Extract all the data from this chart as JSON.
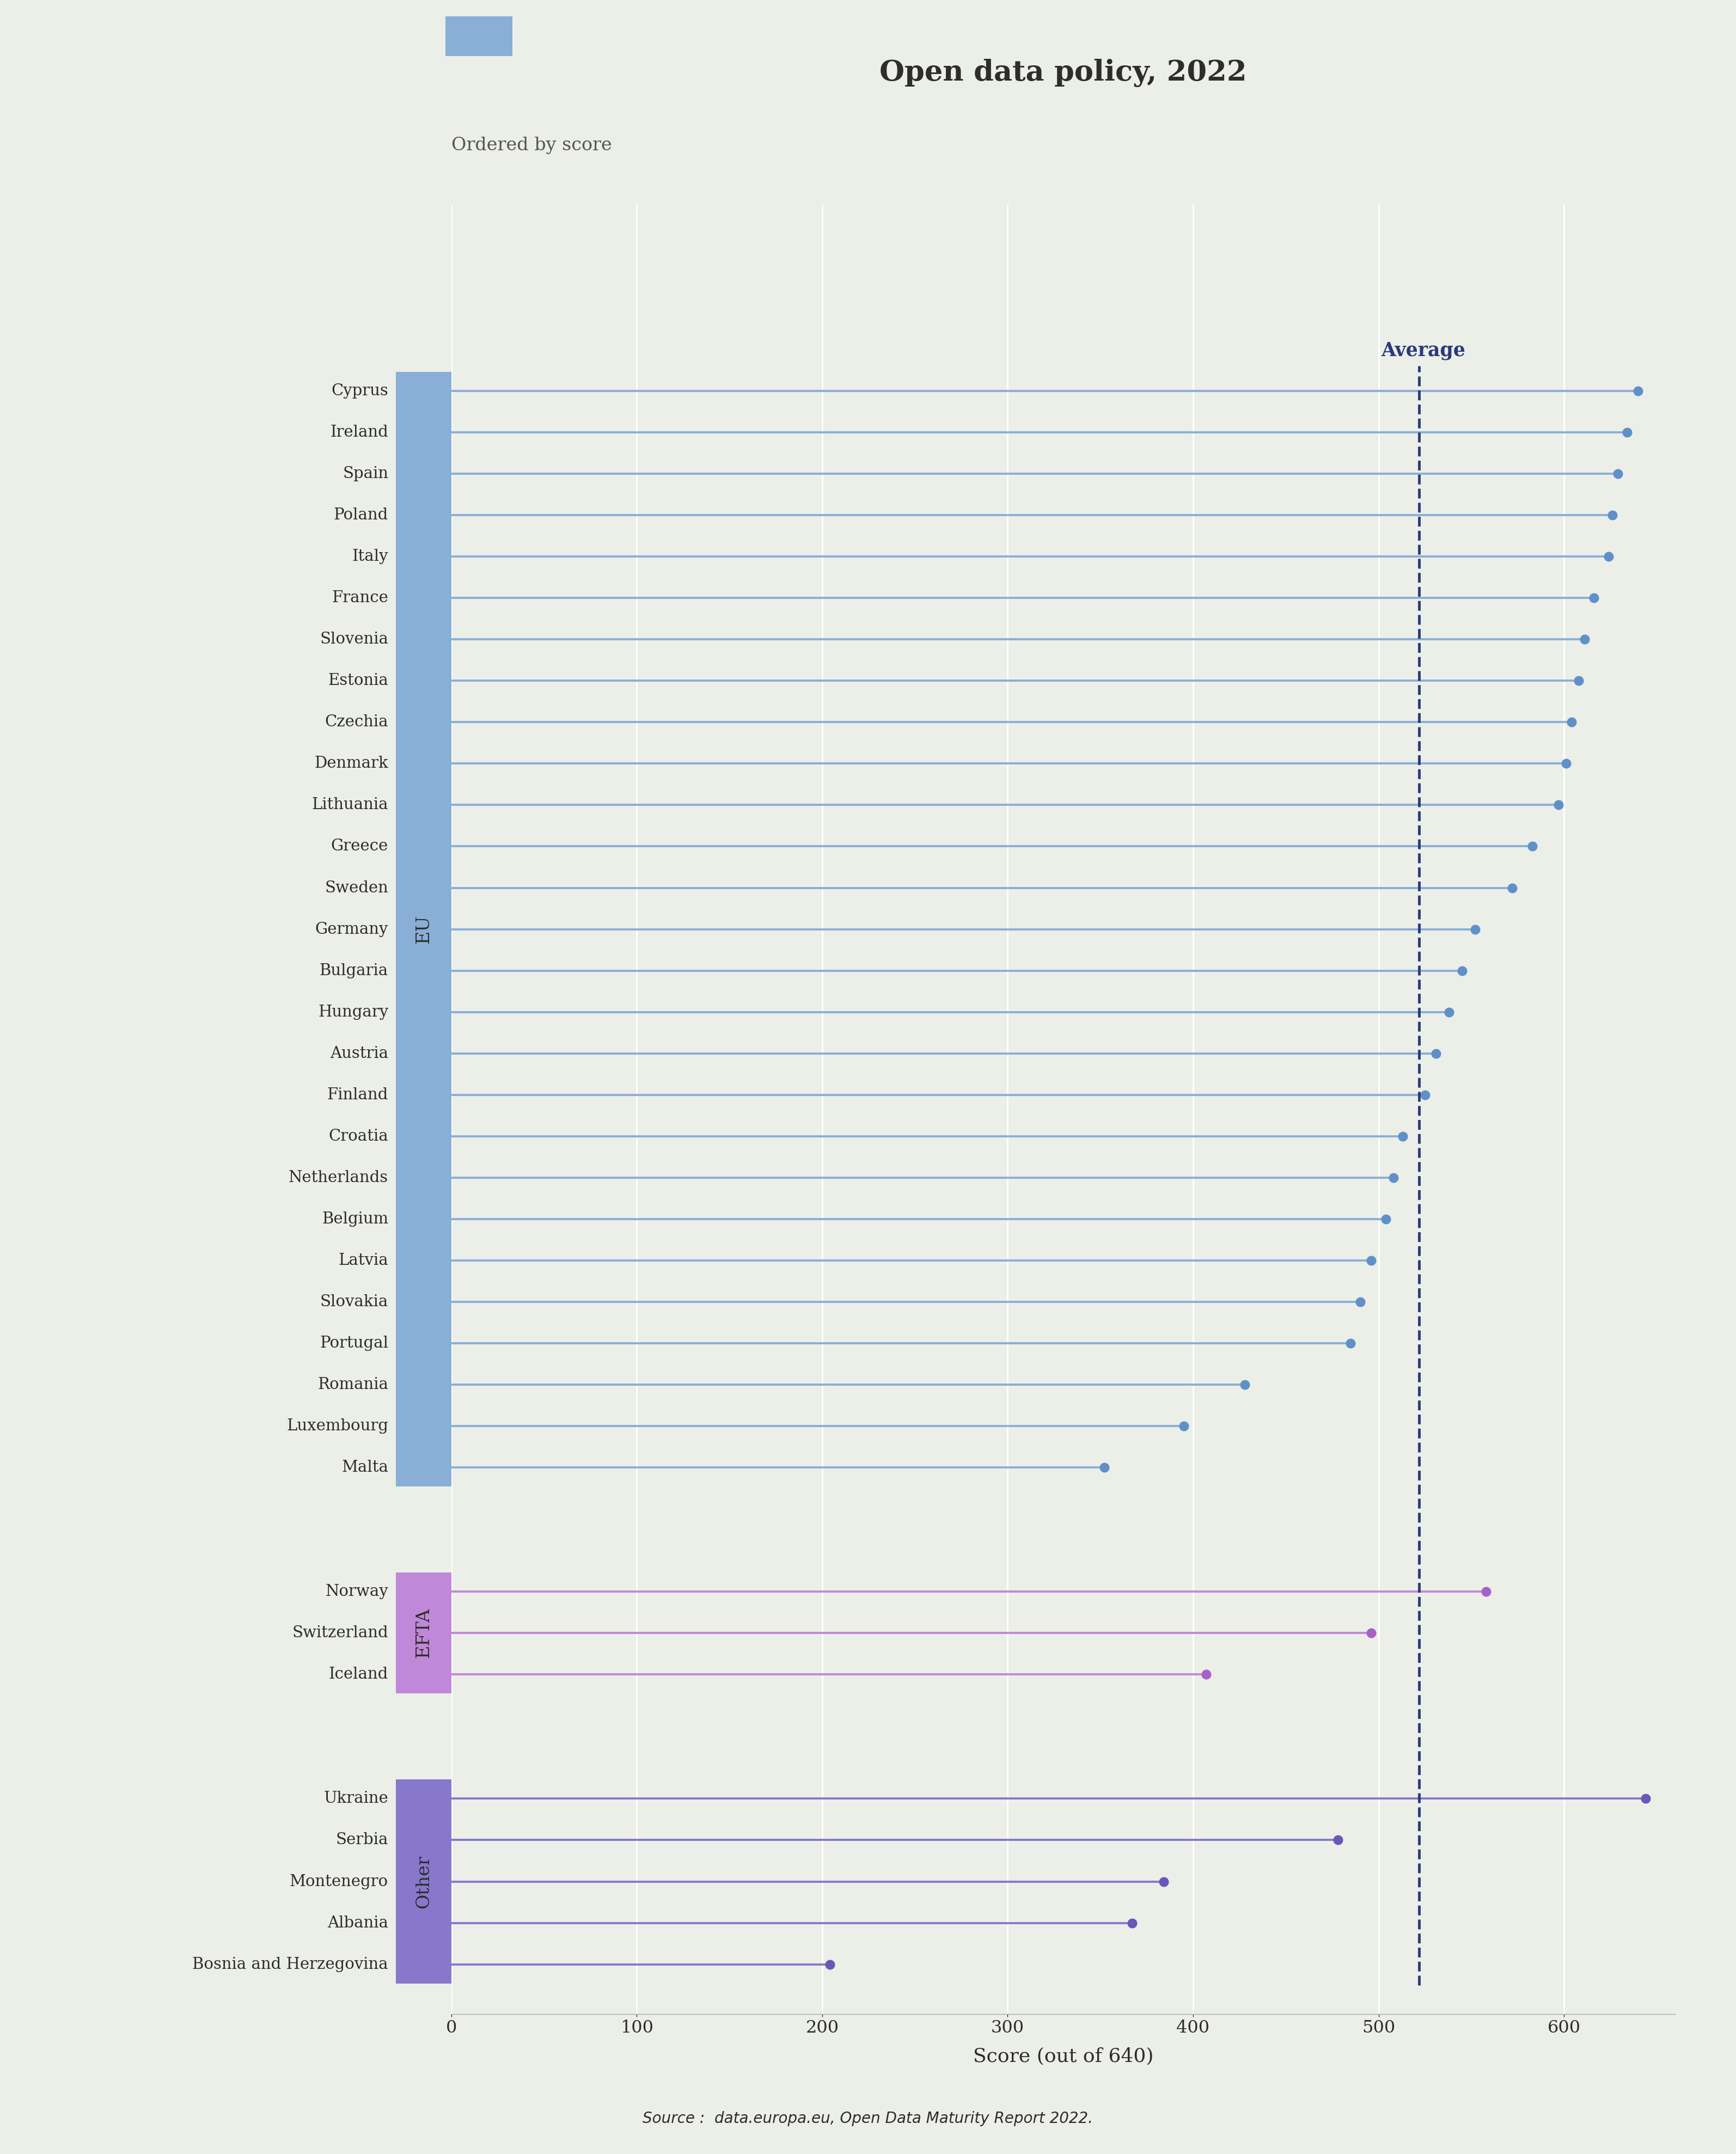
{
  "title": "Open data policy, 2022",
  "subtitle": "Ordered by score",
  "xlabel": "Score (out of 640)",
  "source": "Source :  data.europa.eu, Open Data Maturity Report 2022.",
  "average": 522,
  "average_label": "Average",
  "xlim": [
    0,
    660
  ],
  "background_color": "#eceee8",
  "eu_color": "#8aafd6",
  "efta_color": "#c088d8",
  "other_color": "#8878cc",
  "line_color_eu": "#8aafd6",
  "line_color_efta": "#c088d8",
  "line_color_other": "#8878cc",
  "dot_color_eu": "#6090c8",
  "dot_color_efta": "#a860c8",
  "dot_color_other": "#6858b8",
  "avg_line_color": "#2a3a7a",
  "sidebar_label_color": "#2d2d2d",
  "text_color": "#2d2d2d",
  "grid_color": "#ffffff",
  "countries": [
    {
      "name": "Cyprus",
      "score": 640,
      "group": "EU"
    },
    {
      "name": "Ireland",
      "score": 634,
      "group": "EU"
    },
    {
      "name": "Spain",
      "score": 629,
      "group": "EU"
    },
    {
      "name": "Poland",
      "score": 626,
      "group": "EU"
    },
    {
      "name": "Italy",
      "score": 624,
      "group": "EU"
    },
    {
      "name": "France",
      "score": 616,
      "group": "EU"
    },
    {
      "name": "Slovenia",
      "score": 611,
      "group": "EU"
    },
    {
      "name": "Estonia",
      "score": 608,
      "group": "EU"
    },
    {
      "name": "Czechia",
      "score": 604,
      "group": "EU"
    },
    {
      "name": "Denmark",
      "score": 601,
      "group": "EU"
    },
    {
      "name": "Lithuania",
      "score": 597,
      "group": "EU"
    },
    {
      "name": "Greece",
      "score": 583,
      "group": "EU"
    },
    {
      "name": "Sweden",
      "score": 572,
      "group": "EU"
    },
    {
      "name": "Germany",
      "score": 552,
      "group": "EU"
    },
    {
      "name": "Bulgaria",
      "score": 545,
      "group": "EU"
    },
    {
      "name": "Hungary",
      "score": 538,
      "group": "EU"
    },
    {
      "name": "Austria",
      "score": 531,
      "group": "EU"
    },
    {
      "name": "Finland",
      "score": 525,
      "group": "EU"
    },
    {
      "name": "Croatia",
      "score": 513,
      "group": "EU"
    },
    {
      "name": "Netherlands",
      "score": 508,
      "group": "EU"
    },
    {
      "name": "Belgium",
      "score": 504,
      "group": "EU"
    },
    {
      "name": "Latvia",
      "score": 496,
      "group": "EU"
    },
    {
      "name": "Slovakia",
      "score": 490,
      "group": "EU"
    },
    {
      "name": "Portugal",
      "score": 485,
      "group": "EU"
    },
    {
      "name": "Romania",
      "score": 428,
      "group": "EU"
    },
    {
      "name": "Luxembourg",
      "score": 395,
      "group": "EU"
    },
    {
      "name": "Malta",
      "score": 352,
      "group": "EU"
    },
    {
      "name": "Norway",
      "score": 558,
      "group": "EFTA"
    },
    {
      "name": "Switzerland",
      "score": 496,
      "group": "EFTA"
    },
    {
      "name": "Iceland",
      "score": 407,
      "group": "EFTA"
    },
    {
      "name": "Ukraine",
      "score": 644,
      "group": "Other"
    },
    {
      "name": "Serbia",
      "score": 478,
      "group": "Other"
    },
    {
      "name": "Montenegro",
      "score": 384,
      "group": "Other"
    },
    {
      "name": "Albania",
      "score": 367,
      "group": "Other"
    },
    {
      "name": "Bosnia and Herzegovina",
      "score": 204,
      "group": "Other"
    }
  ]
}
